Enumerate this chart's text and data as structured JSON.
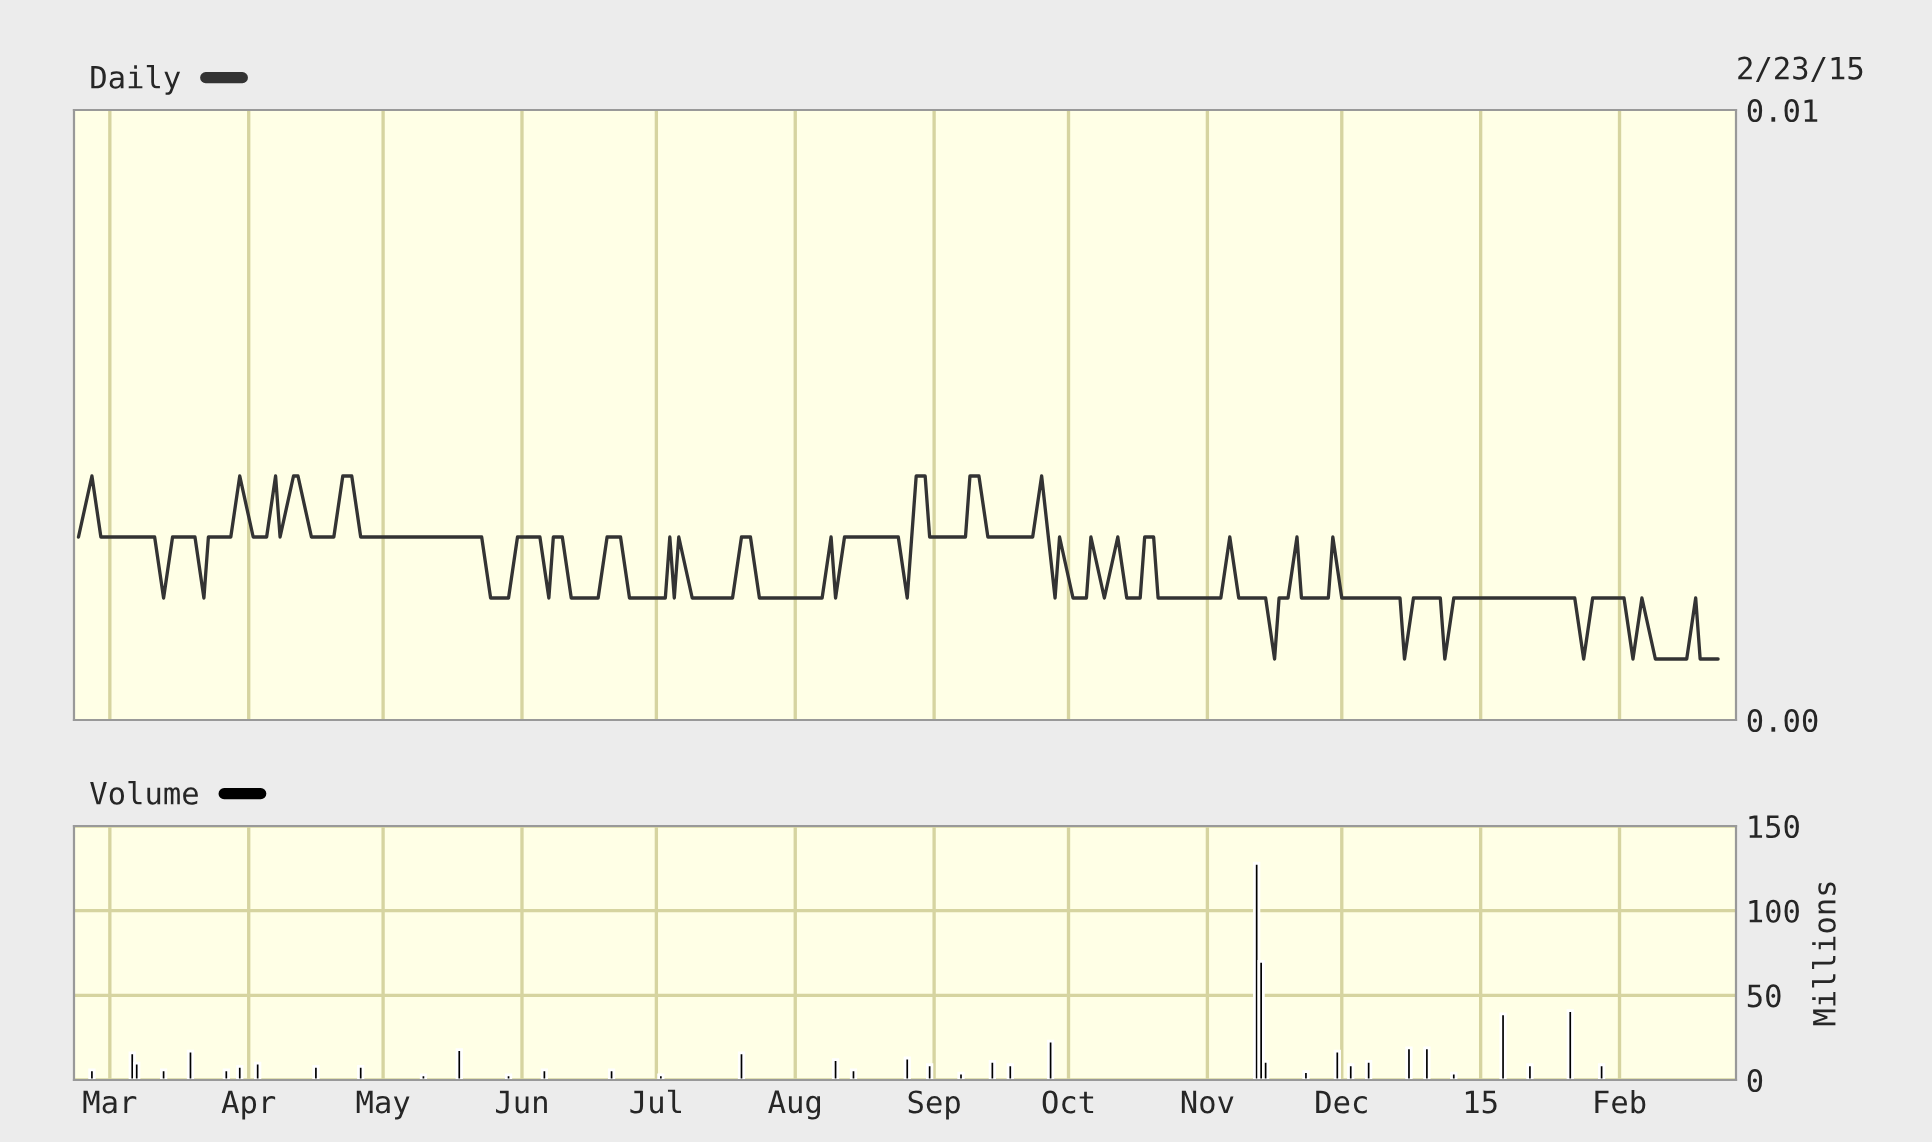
{
  "chart_data": [
    {
      "type": "line",
      "legend": "top left",
      "grid": "x",
      "tick_labels": "y",
      "annotations": [
        "2/23/15"
      ],
      "xlim": [
        "2014-02-21",
        "2015-02-27"
      ],
      "xticks": [
        {
          "value": "2014-03-01",
          "label": null
        },
        {
          "value": "2014-04-01",
          "label": null
        },
        {
          "value": "2014-05-01",
          "label": null
        },
        {
          "value": "2014-06-01",
          "label": null
        },
        {
          "value": "2014-07-01",
          "label": null
        },
        {
          "value": "2014-08-01",
          "label": null
        },
        {
          "value": "2014-09-01",
          "label": null
        },
        {
          "value": "2014-10-01",
          "label": null
        },
        {
          "value": "2014-11-01",
          "label": null
        },
        {
          "value": "2014-12-01",
          "label": null
        },
        {
          "value": "2015-01-01",
          "label": null
        },
        {
          "value": "2015-02-01",
          "label": null
        }
      ],
      "ylim": [
        0,
        0.01
      ],
      "yticks": [
        {
          "value": 0,
          "label": "0.00"
        },
        {
          "value": 0.01,
          "label": "0.01"
        }
      ],
      "series": [
        {
          "name": "Daily",
          "color": "#333333",
          "x": [
            "2014-02-22",
            "2014-02-25",
            "2014-02-27",
            "2014-03-11",
            "2014-03-13",
            "2014-03-15",
            "2014-03-20",
            "2014-03-22",
            "2014-03-23",
            "2014-03-28",
            "2014-03-30",
            "2014-04-02",
            "2014-04-05",
            "2014-04-07",
            "2014-04-08",
            "2014-04-11",
            "2014-04-12",
            "2014-04-15",
            "2014-04-20",
            "2014-04-22",
            "2014-04-24",
            "2014-04-26",
            "2014-05-23",
            "2014-05-25",
            "2014-05-29",
            "2014-05-31",
            "2014-06-05",
            "2014-06-07",
            "2014-06-08",
            "2014-06-10",
            "2014-06-12",
            "2014-06-18",
            "2014-06-20",
            "2014-06-23",
            "2014-06-25",
            "2014-07-03",
            "2014-07-04",
            "2014-07-05",
            "2014-07-06",
            "2014-07-09",
            "2014-07-18",
            "2014-07-20",
            "2014-07-22",
            "2014-07-24",
            "2014-08-07",
            "2014-08-09",
            "2014-08-10",
            "2014-08-12",
            "2014-08-24",
            "2014-08-26",
            "2014-08-27",
            "2014-08-28",
            "2014-08-30",
            "2014-08-31",
            "2014-09-08",
            "2014-09-09",
            "2014-09-11",
            "2014-09-13",
            "2014-09-23",
            "2014-09-25",
            "2014-09-28",
            "2014-09-29",
            "2014-10-02",
            "2014-10-05",
            "2014-10-06",
            "2014-10-09",
            "2014-10-12",
            "2014-10-14",
            "2014-10-17",
            "2014-10-18",
            "2014-10-20",
            "2014-10-21",
            "2014-11-04",
            "2014-11-06",
            "2014-11-08",
            "2014-11-14",
            "2014-11-16",
            "2014-11-17",
            "2014-11-19",
            "2014-11-21",
            "2014-11-22",
            "2014-11-28",
            "2014-11-29",
            "2014-12-01",
            "2014-12-14",
            "2014-12-15",
            "2014-12-17",
            "2014-12-23",
            "2014-12-24",
            "2014-12-26",
            "2015-01-22",
            "2015-01-24",
            "2015-01-26",
            "2015-02-02",
            "2015-02-04",
            "2015-02-06",
            "2015-02-09",
            "2015-02-16",
            "2015-02-18",
            "2015-02-19",
            "2015-02-23"
          ],
          "values": [
            0.003,
            0.004,
            0.003,
            0.003,
            0.002,
            0.003,
            0.003,
            0.002,
            0.003,
            0.003,
            0.004,
            0.003,
            0.003,
            0.004,
            0.003,
            0.004,
            0.004,
            0.003,
            0.003,
            0.004,
            0.004,
            0.003,
            0.003,
            0.002,
            0.002,
            0.003,
            0.003,
            0.002,
            0.003,
            0.003,
            0.002,
            0.002,
            0.003,
            0.003,
            0.002,
            0.002,
            0.003,
            0.002,
            0.003,
            0.002,
            0.002,
            0.003,
            0.003,
            0.002,
            0.002,
            0.003,
            0.002,
            0.003,
            0.003,
            0.002,
            0.003,
            0.004,
            0.004,
            0.003,
            0.003,
            0.004,
            0.004,
            0.003,
            0.003,
            0.004,
            0.002,
            0.003,
            0.002,
            0.002,
            0.003,
            0.002,
            0.003,
            0.002,
            0.002,
            0.003,
            0.003,
            0.002,
            0.002,
            0.003,
            0.002,
            0.002,
            0.001,
            0.002,
            0.002,
            0.003,
            0.002,
            0.002,
            0.003,
            0.002,
            0.002,
            0.001,
            0.002,
            0.002,
            0.001,
            0.002,
            0.002,
            0.001,
            0.002,
            0.002,
            0.001,
            0.002,
            0.001,
            0.001,
            0.002,
            0.001,
            0.001
          ]
        }
      ]
    },
    {
      "type": "bar",
      "legend": "top left",
      "grid": true,
      "ylabel": "Millions",
      "xlim": [
        "2014-02-21",
        "2015-02-27"
      ],
      "xticks": [
        {
          "value": "2014-03-01",
          "label": "Mar"
        },
        {
          "value": "2014-04-01",
          "label": "Apr"
        },
        {
          "value": "2014-05-01",
          "label": "May"
        },
        {
          "value": "2014-06-01",
          "label": "Jun"
        },
        {
          "value": "2014-07-01",
          "label": "Jul"
        },
        {
          "value": "2014-08-01",
          "label": "Aug"
        },
        {
          "value": "2014-09-01",
          "label": "Sep"
        },
        {
          "value": "2014-10-01",
          "label": "Oct"
        },
        {
          "value": "2014-11-01",
          "label": "Nov"
        },
        {
          "value": "2014-12-01",
          "label": "Dec"
        },
        {
          "value": "2015-01-01",
          "label": "15"
        },
        {
          "value": "2015-02-01",
          "label": "Feb"
        }
      ],
      "ylim": [
        0,
        150
      ],
      "yticks": [
        0,
        50,
        100,
        150
      ],
      "series": [
        {
          "name": "Volume",
          "color": "#000000",
          "x": [
            "2014-02-25",
            "2014-03-06",
            "2014-03-07",
            "2014-03-13",
            "2014-03-19",
            "2014-03-27",
            "2014-03-30",
            "2014-04-03",
            "2014-04-16",
            "2014-04-26",
            "2014-05-10",
            "2014-05-18",
            "2014-05-29",
            "2014-06-06",
            "2014-06-21",
            "2014-07-02",
            "2014-07-20",
            "2014-08-10",
            "2014-08-14",
            "2014-08-26",
            "2014-08-31",
            "2014-09-07",
            "2014-09-14",
            "2014-09-18",
            "2014-09-27",
            "2014-11-12",
            "2014-11-13",
            "2014-11-14",
            "2014-11-23",
            "2014-11-30",
            "2014-12-03",
            "2014-12-07",
            "2014-12-16",
            "2014-12-20",
            "2014-12-26",
            "2015-01-06",
            "2015-01-12",
            "2015-01-21",
            "2015-01-28"
          ],
          "values": [
            6,
            16,
            10,
            6,
            17,
            6,
            8,
            10,
            8,
            8,
            3,
            18,
            3,
            6,
            6,
            3,
            16,
            12,
            6,
            13,
            9,
            4,
            11,
            9,
            23,
            128,
            70,
            11,
            5,
            17,
            9,
            11,
            19,
            19,
            4,
            39,
            9,
            41,
            9
          ]
        }
      ]
    }
  ]
}
